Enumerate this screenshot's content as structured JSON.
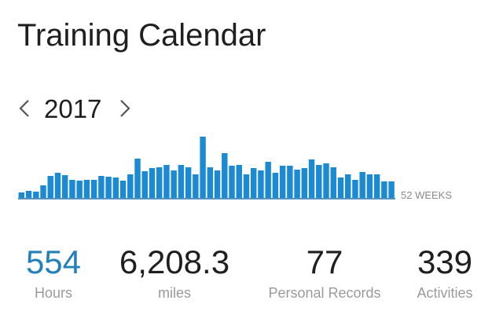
{
  "header": {
    "title": "Training Calendar",
    "year": "2017"
  },
  "chart_data": {
    "type": "bar",
    "color": "#1b8ad3",
    "axis_label": "52 WEEKS",
    "values": [
      7,
      9,
      8,
      16,
      28,
      32,
      29,
      23,
      22,
      23,
      23,
      28,
      27,
      26,
      22,
      30,
      50,
      34,
      38,
      39,
      42,
      35,
      42,
      39,
      30,
      78,
      39,
      35,
      57,
      41,
      42,
      30,
      38,
      35,
      46,
      32,
      41,
      41,
      36,
      38,
      49,
      42,
      44,
      39,
      26,
      30,
      23,
      33,
      30,
      30,
      21,
      21
    ]
  },
  "stats": [
    {
      "value": "554",
      "label": "Hours"
    },
    {
      "value": "6,208.3",
      "label": "miles"
    },
    {
      "value": "77",
      "label": "Personal Records"
    },
    {
      "value": "339",
      "label": "Activities"
    }
  ]
}
